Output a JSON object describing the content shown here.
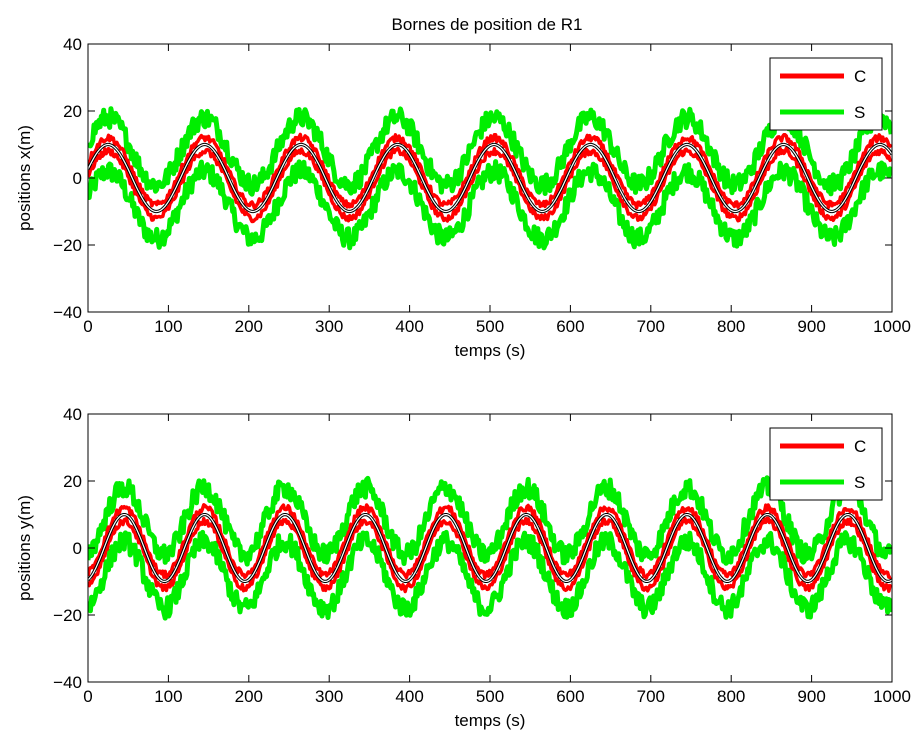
{
  "figure": {
    "title": "Bornes de position de R1"
  },
  "colors": {
    "C": "#ff0000",
    "S": "#00ee00",
    "reference": "#000000",
    "inner": "#ffffff"
  },
  "chart_data": [
    {
      "type": "line",
      "title": "Bornes de position de R1",
      "xlabel": "temps (s)",
      "ylabel": "positions x(m)",
      "xlim": [
        0,
        1000
      ],
      "ylim": [
        -40,
        40
      ],
      "xticks": [
        "0",
        "100",
        "200",
        "300",
        "400",
        "500",
        "600",
        "700",
        "800",
        "900",
        "1000"
      ],
      "yticks": [
        "40",
        "20",
        "0",
        "−20",
        "−40"
      ],
      "grid": false,
      "legend": {
        "location": "top-right",
        "entries": [
          "C",
          "S"
        ]
      },
      "signal": {
        "shape": "sinusoid",
        "amplitude": 10,
        "period": 120,
        "phase_peak_at": 25
      },
      "series": [
        {
          "name": "C",
          "center_amplitude": 10,
          "band_half_width": 2.0,
          "noise": 1.0
        },
        {
          "name": "S",
          "center_amplitude": 10,
          "band_half_width": 8.0,
          "noise": 3.0
        }
      ]
    },
    {
      "type": "line",
      "title": "",
      "xlabel": "temps (s)",
      "ylabel": "positions y(m)",
      "xlim": [
        0,
        1000
      ],
      "ylim": [
        -40,
        40
      ],
      "xticks": [
        "0",
        "100",
        "200",
        "300",
        "400",
        "500",
        "600",
        "700",
        "800",
        "900",
        "1000"
      ],
      "yticks": [
        "40",
        "20",
        "0",
        "−20",
        "−40"
      ],
      "grid": false,
      "legend": {
        "location": "top-right",
        "entries": [
          "C",
          "S"
        ]
      },
      "signal": {
        "shape": "sinusoid",
        "amplitude": 10,
        "period": 100,
        "phase_peak_at": 45
      },
      "series": [
        {
          "name": "C",
          "center_amplitude": 10,
          "band_half_width": 2.0,
          "noise": 1.0
        },
        {
          "name": "S",
          "center_amplitude": 10,
          "band_half_width": 8.0,
          "noise": 3.0
        }
      ]
    }
  ]
}
